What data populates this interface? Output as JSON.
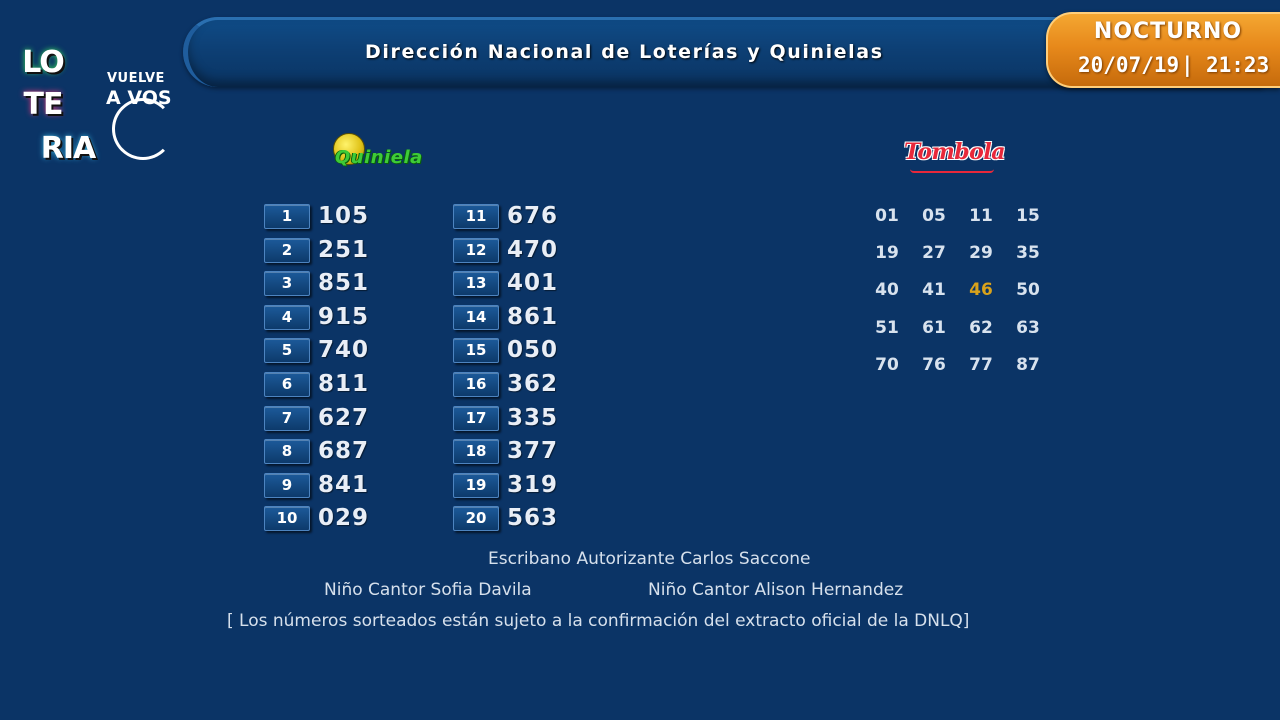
{
  "header": {
    "title": "Dirección Nacional de Loterías y Quinielas"
  },
  "badge": {
    "title": "NOCTURNO",
    "date": "20/07/19",
    "separator": "|",
    "time": "21:23",
    "colors": {
      "accent": "#e7891b"
    }
  },
  "logo": {
    "tiles": [
      "LO",
      "TE",
      "RIA"
    ],
    "vuelve": "VUELVE",
    "a_vos": "A VOS"
  },
  "quiniela": {
    "logo_text": "Quiniela",
    "rows": [
      {
        "pos": "1",
        "num": "105"
      },
      {
        "pos": "2",
        "num": "251"
      },
      {
        "pos": "3",
        "num": "851"
      },
      {
        "pos": "4",
        "num": "915"
      },
      {
        "pos": "5",
        "num": "740"
      },
      {
        "pos": "6",
        "num": "811"
      },
      {
        "pos": "7",
        "num": "627"
      },
      {
        "pos": "8",
        "num": "687"
      },
      {
        "pos": "9",
        "num": "841"
      },
      {
        "pos": "10",
        "num": "029"
      },
      {
        "pos": "11",
        "num": "676"
      },
      {
        "pos": "12",
        "num": "470"
      },
      {
        "pos": "13",
        "num": "401"
      },
      {
        "pos": "14",
        "num": "861"
      },
      {
        "pos": "15",
        "num": "050"
      },
      {
        "pos": "16",
        "num": "362"
      },
      {
        "pos": "17",
        "num": "335"
      },
      {
        "pos": "18",
        "num": "377"
      },
      {
        "pos": "19",
        "num": "319"
      },
      {
        "pos": "20",
        "num": "563"
      }
    ]
  },
  "tombola": {
    "logo_text": "Tombola",
    "numbers": [
      "01",
      "05",
      "11",
      "15",
      "19",
      "27",
      "29",
      "35",
      "40",
      "41",
      "46",
      "50",
      "51",
      "61",
      "62",
      "63",
      "70",
      "76",
      "77",
      "87"
    ],
    "highlighted": "46",
    "colors": {
      "highlight": "#d9a21b"
    }
  },
  "footer": {
    "escribano": "Escribano Autorizante Carlos Saccone",
    "cantor_1": "Niño Cantor Sofia Davila",
    "cantor_2": "Niño Cantor Alison Hernandez",
    "disclaimer": "[ Los números sorteados están sujeto a la confirmación del extracto oficial de la DNLQ]"
  }
}
